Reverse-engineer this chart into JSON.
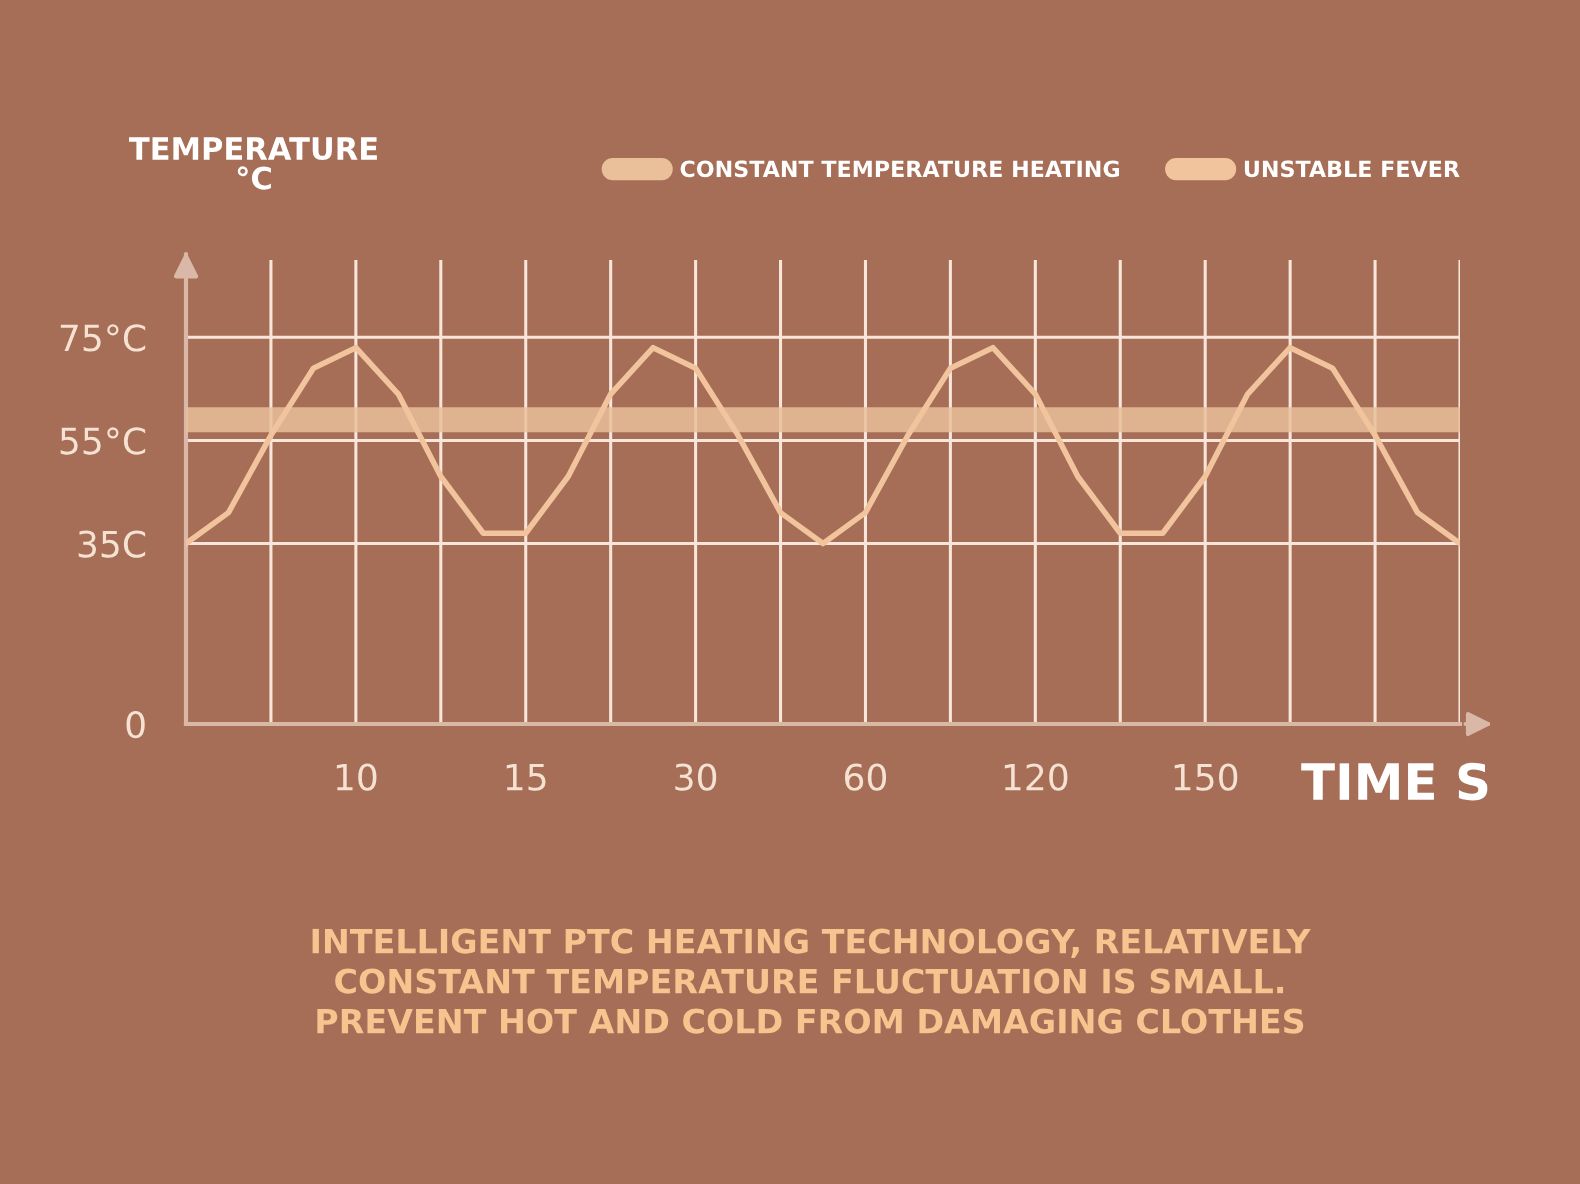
{
  "chart_data": {
    "type": "line",
    "categories": [
      null,
      null,
      null,
      null,
      "10",
      null,
      null,
      null,
      "15",
      null,
      null,
      null,
      "30",
      null,
      null,
      null,
      "60",
      null,
      null,
      null,
      "120",
      null,
      null,
      null,
      "150",
      null,
      null,
      null,
      null,
      null,
      null
    ],
    "series": [
      {
        "name": "CONSTANT TEMPERATURE HEATING",
        "color": "#e9c09a",
        "values": [
          59,
          59,
          59,
          59,
          59,
          59,
          59,
          59,
          59,
          59,
          59,
          59,
          59,
          59,
          59,
          59,
          59,
          59,
          59,
          59,
          59,
          59,
          59,
          59,
          59,
          59,
          59,
          59,
          59,
          59,
          59
        ]
      },
      {
        "name": "UNSTABLE FEVER",
        "color": "#f2c49e",
        "values": [
          35,
          41,
          56,
          69,
          73,
          64,
          48,
          37,
          37,
          48,
          64,
          73,
          69,
          56,
          41,
          35,
          41,
          56,
          69,
          73,
          64,
          48,
          37,
          37,
          48,
          64,
          73,
          69,
          56,
          41,
          35
        ]
      }
    ],
    "xlabel": "TIME S",
    "ylabel": "TEMPERATURE\n°C",
    "ylim": [
      0,
      90
    ],
    "yticks": [
      0,
      {
        "value": 35,
        "label": "35C"
      },
      {
        "value": 55,
        "label": "55°C"
      },
      {
        "value": 75,
        "label": "75°C"
      }
    ],
    "grid": true,
    "legend": "top right",
    "marker": "none",
    "line_style": "solid",
    "annotations": [
      "INTELLIGENT PTC HEATING TECHNOLOGY, RELATIVELY",
      "CONSTANT TEMPERATURE FLUCTUATION IS SMALL.",
      "PREVENT HOT AND COLD FROM DAMAGING CLOTHES"
    ]
  }
}
